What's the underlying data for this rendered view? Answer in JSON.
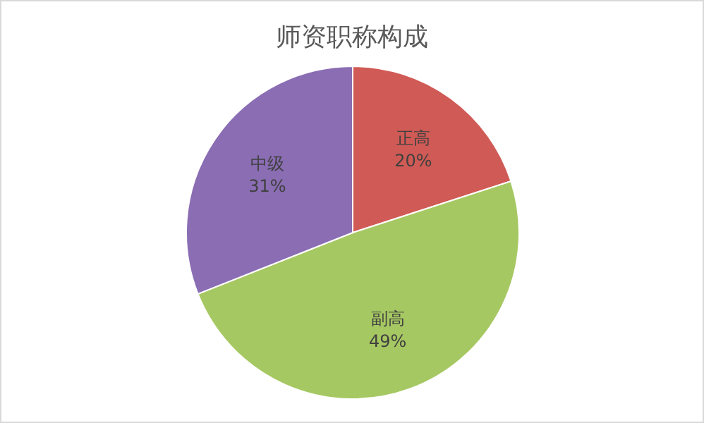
{
  "chart_data": {
    "type": "pie",
    "title": "师资职称构成",
    "categories": [
      "正高",
      "副高",
      "中级"
    ],
    "values": [
      20,
      49,
      31
    ],
    "colors": [
      "#d05a55",
      "#a6c862",
      "#8a6db3"
    ],
    "value_labels": [
      "20%",
      "49%",
      "31%"
    ]
  }
}
